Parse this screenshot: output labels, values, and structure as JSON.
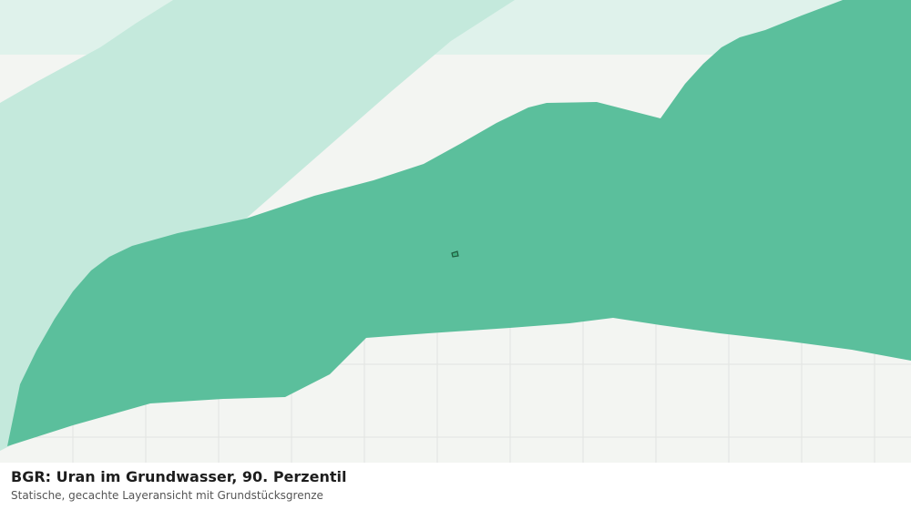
{
  "map": {
    "colors": {
      "background": "#f3f5f2",
      "grid": "#e2e4e1",
      "lightest_zone": "#dff2eb",
      "light_zone": "#c4e9dc",
      "main_zone": "#5bbf9c",
      "parcel_fill": "#3fae80",
      "parcel_stroke": "#1f5d3f"
    }
  },
  "caption": {
    "title": "BGR: Uran im Grundwasser, 90. Perzentil",
    "subtitle": "Statische, gecachte Layeransicht mit Grundstücksgrenze"
  }
}
